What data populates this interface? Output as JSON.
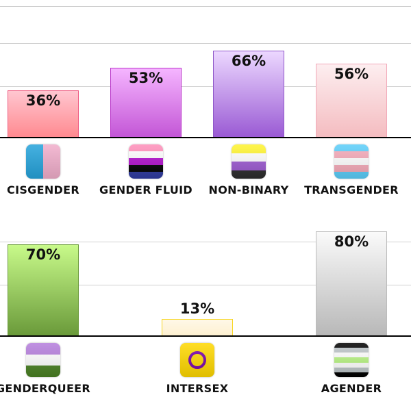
{
  "chart_data": [
    {
      "type": "bar",
      "ylim": [
        0,
        100
      ],
      "unit": "%",
      "categories": [
        "CISGENDER",
        "GENDER FLUID",
        "NON-BINARY",
        "TRANSGENDER"
      ],
      "values": [
        36,
        53,
        66,
        56
      ],
      "labels": [
        "36%",
        "53%",
        "66%",
        "56%"
      ],
      "fills": [
        [
          "#ffc6d0",
          "#ff8a90",
          "#ee5a80"
        ],
        [
          "#f5b5ff",
          "#c356d6",
          "#b830c8"
        ],
        [
          "#ecd8ff",
          "#9a5ad4",
          "#8e56c8"
        ],
        [
          "#fdeef0",
          "#f4bcc0",
          "#f2a8b8"
        ]
      ],
      "flags": [
        [
          "v",
          "#25a3db",
          "#f1aecb"
        ],
        [
          "h",
          "#ff8fba",
          "#ffffff",
          "#b20fcd",
          "#000000",
          "#2f3ba0"
        ],
        [
          "h",
          "#fff42f",
          "#ffffff",
          "#9c59d1",
          "#2c2c2c"
        ],
        [
          "h",
          "#5bcefa",
          "#f5a9b8",
          "#ffffff",
          "#f5a9b8",
          "#5bcefa"
        ]
      ]
    },
    {
      "type": "bar",
      "ylim": [
        0,
        100
      ],
      "unit": "%",
      "categories": [
        "GENDERQUEER",
        "INTERSEX",
        "AGENDER"
      ],
      "values": [
        70,
        13,
        80
      ],
      "labels": [
        "70%",
        "13%",
        "80%"
      ],
      "fills": [
        [
          "#c8fa8a",
          "#6a9a3a",
          "#6a9a3a"
        ],
        [
          "#fff8e8",
          "#fdf0d0",
          "#f7d520"
        ],
        [
          "#fafafa",
          "#b8b8b8",
          "#bbbbbb"
        ]
      ],
      "flags": [
        [
          "h",
          "#b57edc",
          "#ffffff",
          "#4a8123"
        ],
        [
          "i",
          "#ffd800",
          "#7902aa"
        ],
        [
          "h",
          "#000000",
          "#bcc4c7",
          "#ffffff",
          "#b8f483",
          "#ffffff",
          "#bcc4c7",
          "#000000"
        ]
      ]
    }
  ]
}
